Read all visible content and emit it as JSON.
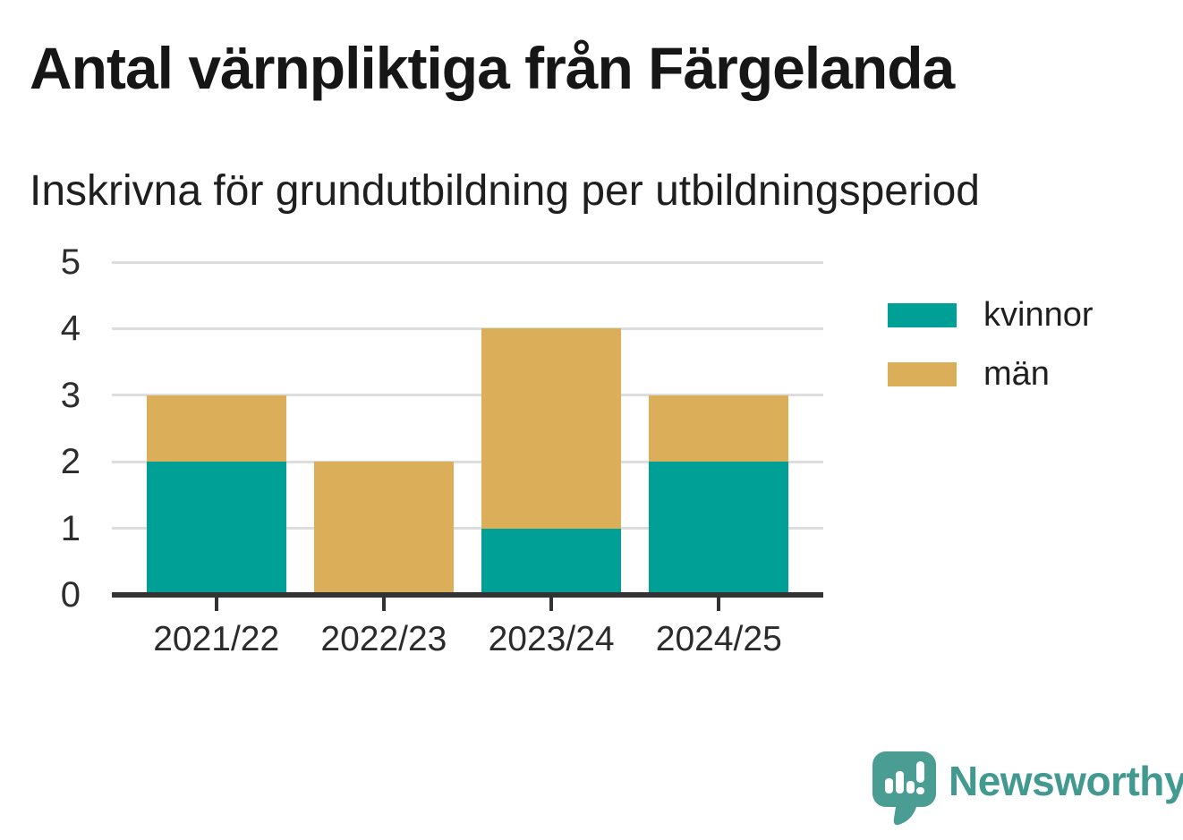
{
  "title": "Antal värnpliktiga från Färgelanda",
  "subtitle": "Inskrivna för grundutbildning per utbildningsperiod",
  "branding": {
    "name": "Newsworthy",
    "icon": "speech-bubble-bar-chart-icon",
    "text_color": "#42998F",
    "icon_color": "#4A9D93"
  },
  "chart_data": {
    "type": "bar",
    "stacked": true,
    "title": "Antal värnpliktiga från Färgelanda",
    "subtitle": "Inskrivna för grundutbildning per utbildningsperiod",
    "categories": [
      "2021/22",
      "2022/23",
      "2023/24",
      "2024/25"
    ],
    "series": [
      {
        "name": "kvinnor",
        "color": "#00A096",
        "values": [
          2,
          0,
          1,
          2
        ]
      },
      {
        "name": "män",
        "color": "#DBAE5A",
        "values": [
          1,
          2,
          3,
          1
        ]
      }
    ],
    "totals": [
      3,
      2,
      4,
      3
    ],
    "xlabel": "",
    "ylabel": "",
    "ylim": [
      0,
      5
    ],
    "yticks": [
      0,
      1,
      2,
      3,
      4,
      5
    ],
    "grid": "horizontal",
    "gridline_color": "#DDDDDD",
    "axis_color": "#333333",
    "legend_position": "right"
  }
}
